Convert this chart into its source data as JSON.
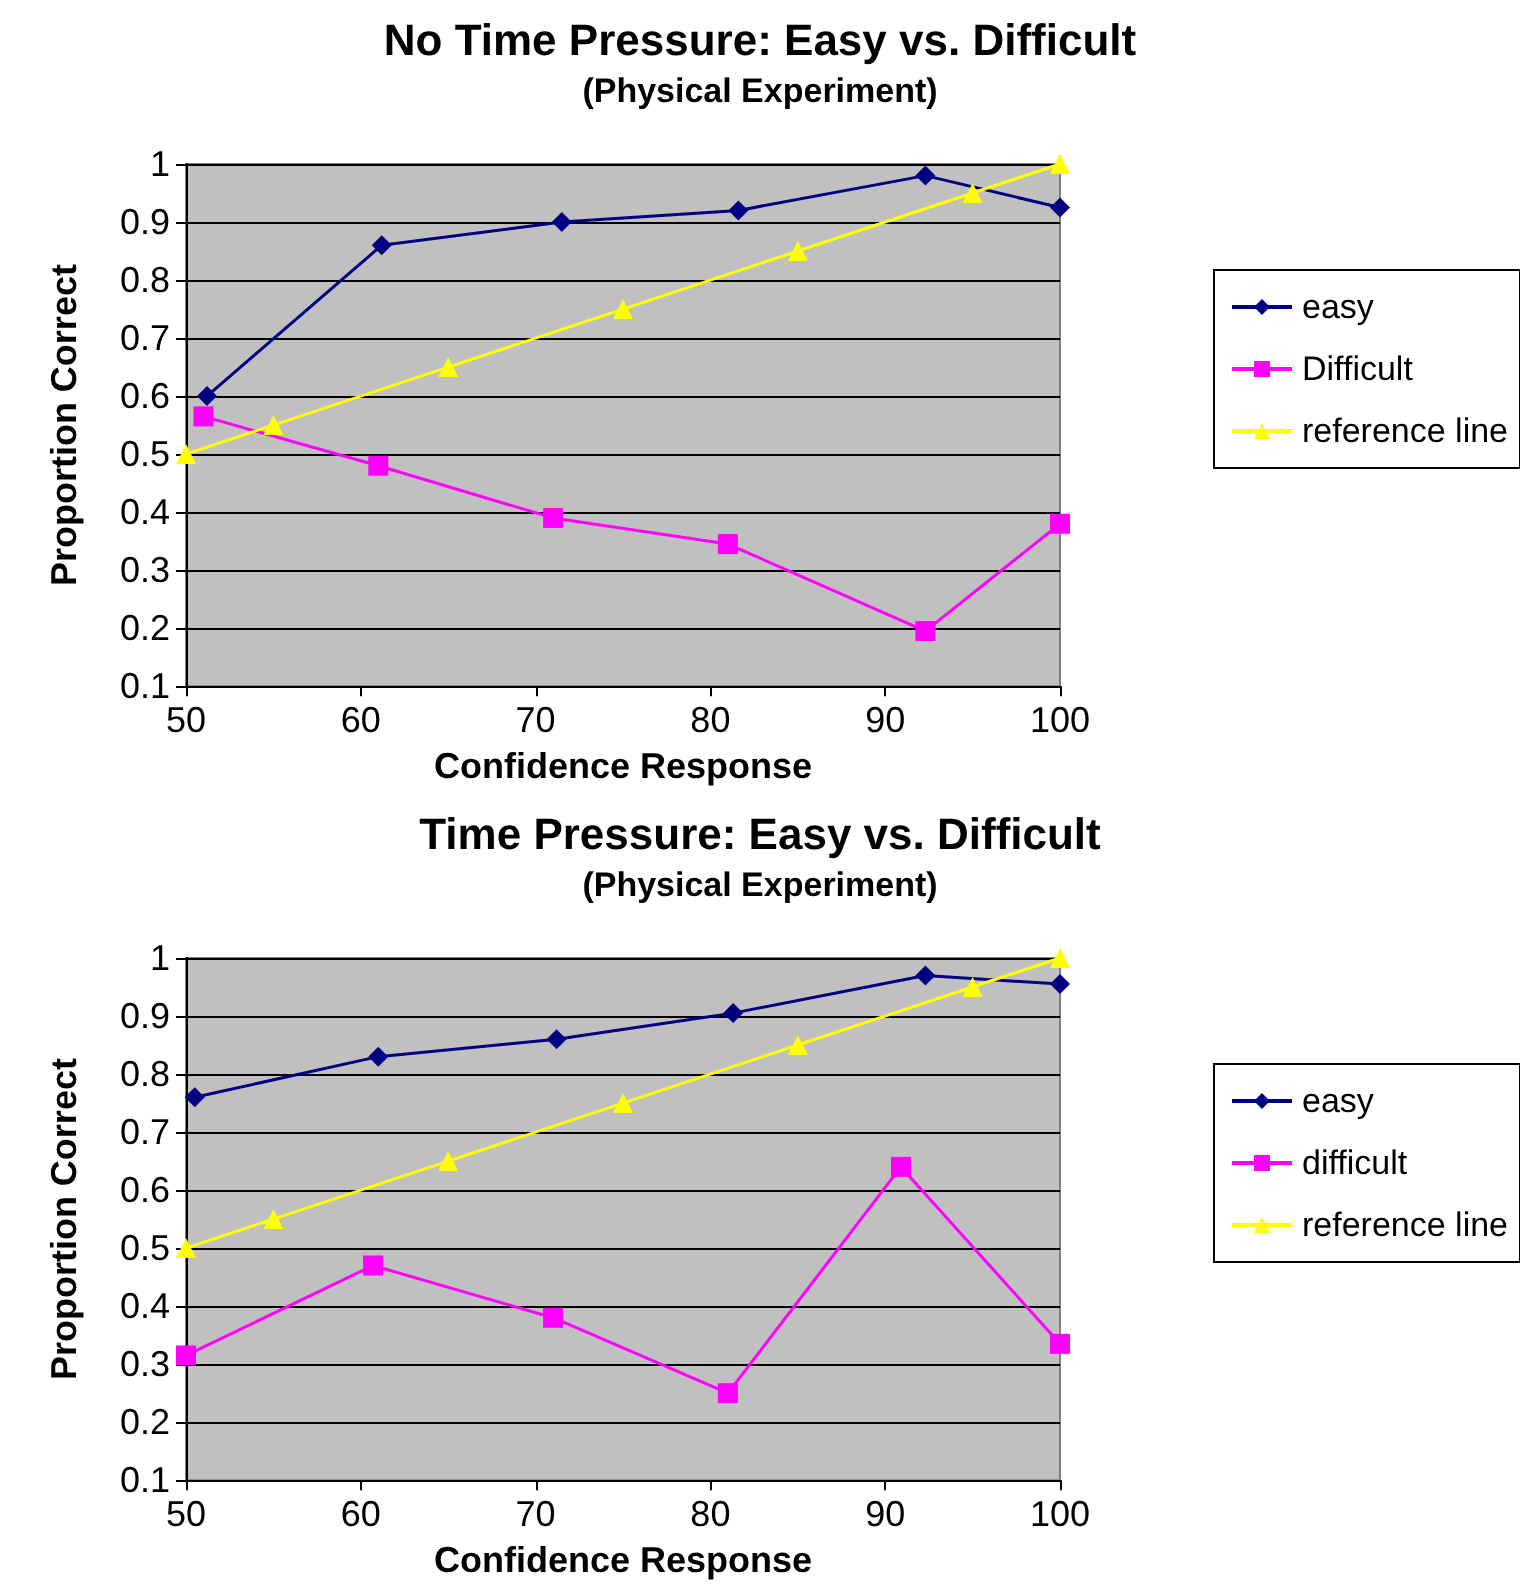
{
  "chart_data": [
    {
      "type": "line",
      "title": "No Time Pressure: Easy vs. Difficult",
      "subtitle": "(Physical Experiment)",
      "xlabel": "Confidence Response",
      "ylabel": "Proportion Correct",
      "xlim": [
        50,
        100
      ],
      "xticks": [
        50,
        60,
        70,
        80,
        90,
        100
      ],
      "ylim": [
        0.1,
        1
      ],
      "yticks": [
        0.1,
        0.2,
        0.3,
        0.4,
        0.5,
        0.6,
        0.7,
        0.8,
        0.9,
        1
      ],
      "grid": "y",
      "legend": "right",
      "series": [
        {
          "name": "easy",
          "color": "#000080",
          "marker": "diamond",
          "x": [
            51.2,
            61.2,
            71.5,
            81.6,
            92.3,
            100
          ],
          "values": [
            0.6,
            0.86,
            0.9,
            0.92,
            0.98,
            0.925
          ]
        },
        {
          "name": "Difficult",
          "color": "#ff00ff",
          "marker": "square",
          "x": [
            51,
            61,
            71,
            81,
            92.3,
            100
          ],
          "values": [
            0.565,
            0.48,
            0.39,
            0.345,
            0.195,
            0.38
          ]
        },
        {
          "name": "reference line",
          "color": "#ffff00",
          "marker": "triangle",
          "x": [
            50,
            55,
            65,
            75,
            85,
            95,
            100
          ],
          "values": [
            0.5,
            0.55,
            0.65,
            0.75,
            0.85,
            0.95,
            1
          ]
        }
      ]
    },
    {
      "type": "line",
      "title": "Time Pressure: Easy vs. Difficult",
      "subtitle": "(Physical Experiment)",
      "xlabel": "Confidence Response",
      "ylabel": "Proportion Correct",
      "xlim": [
        50,
        100
      ],
      "xticks": [
        50,
        60,
        70,
        80,
        90,
        100
      ],
      "ylim": [
        0.1,
        1
      ],
      "yticks": [
        0.1,
        0.2,
        0.3,
        0.4,
        0.5,
        0.6,
        0.7,
        0.8,
        0.9,
        1
      ],
      "grid": "y",
      "legend": "right",
      "series": [
        {
          "name": "easy",
          "color": "#000080",
          "marker": "diamond",
          "x": [
            50.5,
            61,
            71.2,
            81.3,
            92.3,
            100
          ],
          "values": [
            0.76,
            0.83,
            0.86,
            0.905,
            0.97,
            0.955
          ]
        },
        {
          "name": "difficult",
          "color": "#ff00ff",
          "marker": "square",
          "x": [
            50,
            60.7,
            71,
            81,
            90.9,
            100
          ],
          "values": [
            0.315,
            0.47,
            0.38,
            0.25,
            0.64,
            0.335
          ]
        },
        {
          "name": "reference line",
          "color": "#ffff00",
          "marker": "triangle",
          "x": [
            50,
            55,
            65,
            75,
            85,
            95,
            100
          ],
          "values": [
            0.5,
            0.55,
            0.65,
            0.75,
            0.85,
            0.95,
            1
          ]
        }
      ]
    }
  ]
}
